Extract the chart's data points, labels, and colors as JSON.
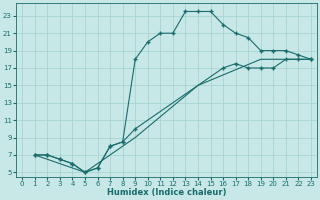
{
  "xlabel": "Humidex (Indice chaleur)",
  "bg_color": "#c8e8e8",
  "grid_color": "#a8d4d0",
  "line_color": "#1a6b6b",
  "xlim": [
    -0.5,
    23.5
  ],
  "ylim": [
    4.5,
    24.5
  ],
  "xticks": [
    0,
    1,
    2,
    3,
    4,
    5,
    6,
    7,
    8,
    9,
    10,
    11,
    12,
    13,
    14,
    15,
    16,
    17,
    18,
    19,
    20,
    21,
    22,
    23
  ],
  "yticks": [
    5,
    7,
    9,
    11,
    13,
    15,
    17,
    19,
    21,
    23
  ],
  "line1_x": [
    1,
    2,
    3,
    4,
    5,
    6,
    7,
    8,
    9,
    10,
    11,
    12,
    13,
    14,
    15,
    16,
    17,
    18,
    19,
    20,
    21,
    22,
    23
  ],
  "line1_y": [
    7,
    7,
    6.5,
    6,
    5,
    5.5,
    8,
    8.5,
    18,
    20,
    21,
    21,
    23.5,
    23.5,
    23.5,
    22,
    21,
    20.5,
    19,
    19,
    19,
    18.5,
    18
  ],
  "line2_x": [
    1,
    2,
    3,
    4,
    5,
    6,
    7,
    8,
    9,
    16,
    17,
    18,
    19,
    20,
    21,
    22,
    23
  ],
  "line2_y": [
    7,
    7,
    6.5,
    6,
    5,
    5.5,
    8,
    8.5,
    10,
    17,
    17.5,
    17,
    17,
    17,
    18,
    18,
    18
  ],
  "line3_x": [
    1,
    5,
    9,
    14,
    19,
    23
  ],
  "line3_y": [
    7,
    5,
    9,
    15,
    18,
    18
  ]
}
